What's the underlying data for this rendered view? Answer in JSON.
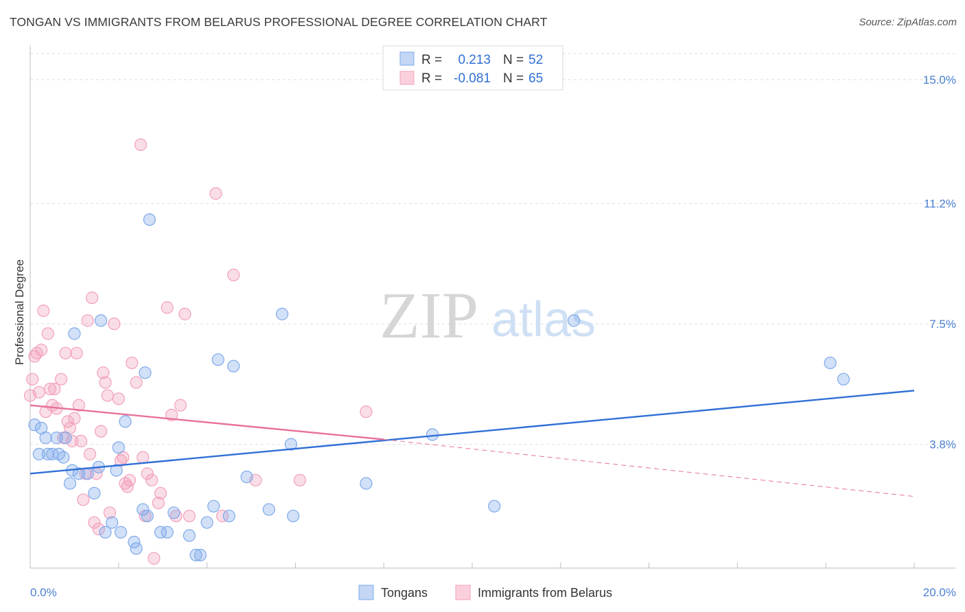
{
  "title": "TONGAN VS IMMIGRANTS FROM BELARUS PROFESSIONAL DEGREE CORRELATION CHART",
  "source": "Source: ZipAtlas.com",
  "watermark": {
    "zip": "ZIP",
    "atlas": "atlas"
  },
  "chart_data": {
    "type": "scatter",
    "title": "TONGAN VS IMMIGRANTS FROM BELARUS PROFESSIONAL DEGREE CORRELATION CHART",
    "xlabel": "",
    "ylabel": "Professional Degree",
    "xlim": [
      0,
      20
    ],
    "ylim": [
      0,
      15.8
    ],
    "x_tick_labels": [
      "0.0%",
      "20.0%"
    ],
    "y_ticks": [
      3.8,
      7.5,
      11.2,
      15.0
    ],
    "y_tick_labels": [
      "3.8%",
      "7.5%",
      "11.2%",
      "15.0%"
    ],
    "grid": true,
    "colors": {
      "tongans": "#7ea9ea",
      "belarus": "#f2a0ba",
      "tongans_line": "#2f6fd6",
      "belarus_line": "#e8709a"
    },
    "legend": [
      {
        "r_label": "R =",
        "r_value": "0.213",
        "n_label": "N =",
        "n_value": "52"
      },
      {
        "r_label": "R =",
        "r_value": "-0.081",
        "n_label": "N =",
        "n_value": "65"
      }
    ],
    "series": [
      {
        "name": "Tongans",
        "points": [
          [
            0.1,
            4.4
          ],
          [
            0.2,
            3.5
          ],
          [
            0.25,
            4.3
          ],
          [
            0.35,
            4.0
          ],
          [
            0.4,
            3.5
          ],
          [
            0.5,
            3.5
          ],
          [
            0.6,
            4.0
          ],
          [
            0.65,
            3.5
          ],
          [
            0.75,
            3.4
          ],
          [
            0.8,
            4.0
          ],
          [
            0.9,
            2.6
          ],
          [
            0.95,
            3.0
          ],
          [
            1.0,
            7.2
          ],
          [
            1.1,
            2.9
          ],
          [
            1.3,
            2.9
          ],
          [
            1.45,
            2.3
          ],
          [
            1.55,
            3.1
          ],
          [
            1.6,
            7.6
          ],
          [
            1.7,
            1.1
          ],
          [
            1.95,
            3.0
          ],
          [
            1.85,
            1.4
          ],
          [
            2.0,
            3.7
          ],
          [
            2.05,
            1.1
          ],
          [
            2.15,
            4.5
          ],
          [
            2.35,
            0.8
          ],
          [
            2.4,
            0.6
          ],
          [
            2.55,
            1.8
          ],
          [
            2.6,
            6.0
          ],
          [
            2.65,
            1.6
          ],
          [
            2.7,
            10.7
          ],
          [
            2.95,
            1.1
          ],
          [
            3.1,
            1.1
          ],
          [
            3.25,
            1.7
          ],
          [
            3.6,
            1.0
          ],
          [
            3.75,
            0.4
          ],
          [
            3.85,
            0.4
          ],
          [
            4.0,
            1.4
          ],
          [
            4.15,
            1.9
          ],
          [
            4.25,
            6.4
          ],
          [
            4.5,
            1.6
          ],
          [
            4.6,
            6.2
          ],
          [
            4.9,
            2.8
          ],
          [
            5.4,
            1.8
          ],
          [
            5.7,
            7.8
          ],
          [
            5.9,
            3.8
          ],
          [
            5.95,
            1.6
          ],
          [
            7.6,
            2.6
          ],
          [
            9.1,
            4.1
          ],
          [
            10.5,
            1.9
          ],
          [
            12.3,
            7.6
          ],
          [
            18.1,
            6.3
          ],
          [
            18.4,
            5.8
          ]
        ]
      },
      {
        "name": "Immigrants from Belarus",
        "points": [
          [
            0.05,
            5.8
          ],
          [
            0.1,
            6.5
          ],
          [
            0.15,
            6.6
          ],
          [
            0.2,
            5.4
          ],
          [
            0.25,
            6.7
          ],
          [
            0.3,
            7.9
          ],
          [
            0.35,
            4.8
          ],
          [
            0.4,
            7.2
          ],
          [
            0.45,
            5.5
          ],
          [
            0.5,
            5.0
          ],
          [
            0.55,
            5.5
          ],
          [
            0.6,
            4.9
          ],
          [
            0.7,
            5.8
          ],
          [
            0.75,
            4.0
          ],
          [
            0.8,
            6.6
          ],
          [
            0.85,
            4.5
          ],
          [
            0.9,
            4.3
          ],
          [
            0.95,
            3.9
          ],
          [
            1.0,
            4.6
          ],
          [
            1.05,
            6.6
          ],
          [
            1.1,
            5.0
          ],
          [
            1.15,
            3.9
          ],
          [
            1.2,
            2.1
          ],
          [
            1.25,
            2.9
          ],
          [
            1.3,
            7.6
          ],
          [
            1.35,
            3.5
          ],
          [
            1.4,
            8.3
          ],
          [
            1.45,
            1.4
          ],
          [
            1.5,
            2.9
          ],
          [
            1.55,
            1.2
          ],
          [
            1.6,
            4.2
          ],
          [
            1.65,
            6.0
          ],
          [
            1.7,
            5.7
          ],
          [
            1.75,
            5.3
          ],
          [
            1.8,
            1.7
          ],
          [
            1.9,
            7.5
          ],
          [
            2.0,
            5.2
          ],
          [
            2.05,
            3.3
          ],
          [
            2.1,
            3.4
          ],
          [
            2.15,
            2.6
          ],
          [
            2.2,
            2.5
          ],
          [
            2.25,
            2.7
          ],
          [
            2.3,
            6.3
          ],
          [
            2.4,
            5.7
          ],
          [
            2.5,
            13.0
          ],
          [
            2.55,
            3.4
          ],
          [
            2.6,
            1.6
          ],
          [
            2.65,
            2.9
          ],
          [
            2.75,
            2.7
          ],
          [
            2.8,
            0.3
          ],
          [
            2.9,
            2.0
          ],
          [
            2.95,
            2.3
          ],
          [
            3.1,
            8.0
          ],
          [
            3.2,
            4.7
          ],
          [
            3.3,
            1.6
          ],
          [
            3.4,
            5.0
          ],
          [
            3.5,
            7.8
          ],
          [
            3.6,
            1.6
          ],
          [
            4.2,
            11.5
          ],
          [
            4.35,
            1.6
          ],
          [
            4.6,
            9.0
          ],
          [
            5.1,
            2.7
          ],
          [
            6.1,
            2.7
          ],
          [
            7.6,
            4.8
          ],
          [
            0.0,
            5.3
          ]
        ]
      }
    ],
    "trend_lines": [
      {
        "name": "Tongans",
        "x": [
          0,
          20
        ],
        "y": [
          2.9,
          5.45
        ],
        "style": "solid"
      },
      {
        "name": "Immigrants from Belarus",
        "x": [
          0,
          8.0
        ],
        "y": [
          5.0,
          3.95
        ],
        "style": "solid"
      },
      {
        "name": "Immigrants from Belarus (extrapolated)",
        "x": [
          8.0,
          20
        ],
        "y": [
          3.95,
          2.2
        ],
        "style": "dashed"
      }
    ]
  }
}
